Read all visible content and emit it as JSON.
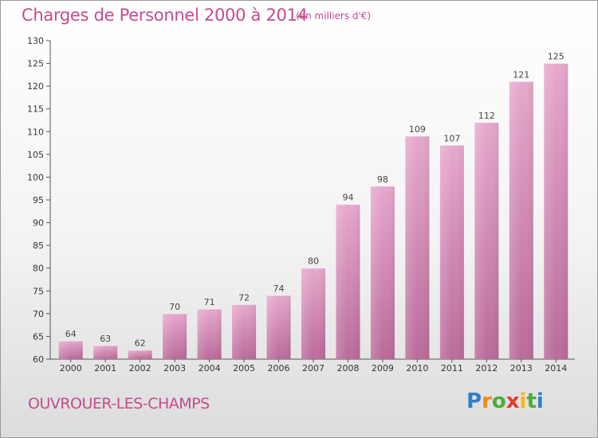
{
  "chart_data": {
    "type": "bar",
    "title": "Charges de Personnel 2000 à 2014",
    "subtitle": "(en milliers d'€)",
    "categories": [
      "2000",
      "2001",
      "2002",
      "2003",
      "2004",
      "2005",
      "2006",
      "2007",
      "2008",
      "2009",
      "2010",
      "2011",
      "2012",
      "2013",
      "2014"
    ],
    "values": [
      64,
      63,
      62,
      70,
      71,
      72,
      74,
      80,
      94,
      98,
      109,
      107,
      112,
      121,
      125
    ],
    "xlabel": "",
    "ylabel": "",
    "ylim": [
      60,
      130
    ],
    "yticks": [
      60,
      65,
      70,
      75,
      80,
      85,
      90,
      95,
      100,
      105,
      110,
      115,
      120,
      125,
      130
    ],
    "grid": false,
    "bar_color": "#d688b5"
  },
  "footer": {
    "commune": "OUVROUER-LES-CHAMPS",
    "logo_letters": [
      {
        "char": "P",
        "color": "#2e7fc9"
      },
      {
        "char": "r",
        "color": "#f08a1c"
      },
      {
        "char": "o",
        "color": "#4ea93b"
      },
      {
        "char": "x",
        "color": "#e23a2e"
      },
      {
        "char": "i",
        "color": "#f5b51b"
      },
      {
        "char": "t",
        "color": "#4ea93b"
      },
      {
        "char": "i",
        "color": "#2e7fc9"
      }
    ]
  }
}
